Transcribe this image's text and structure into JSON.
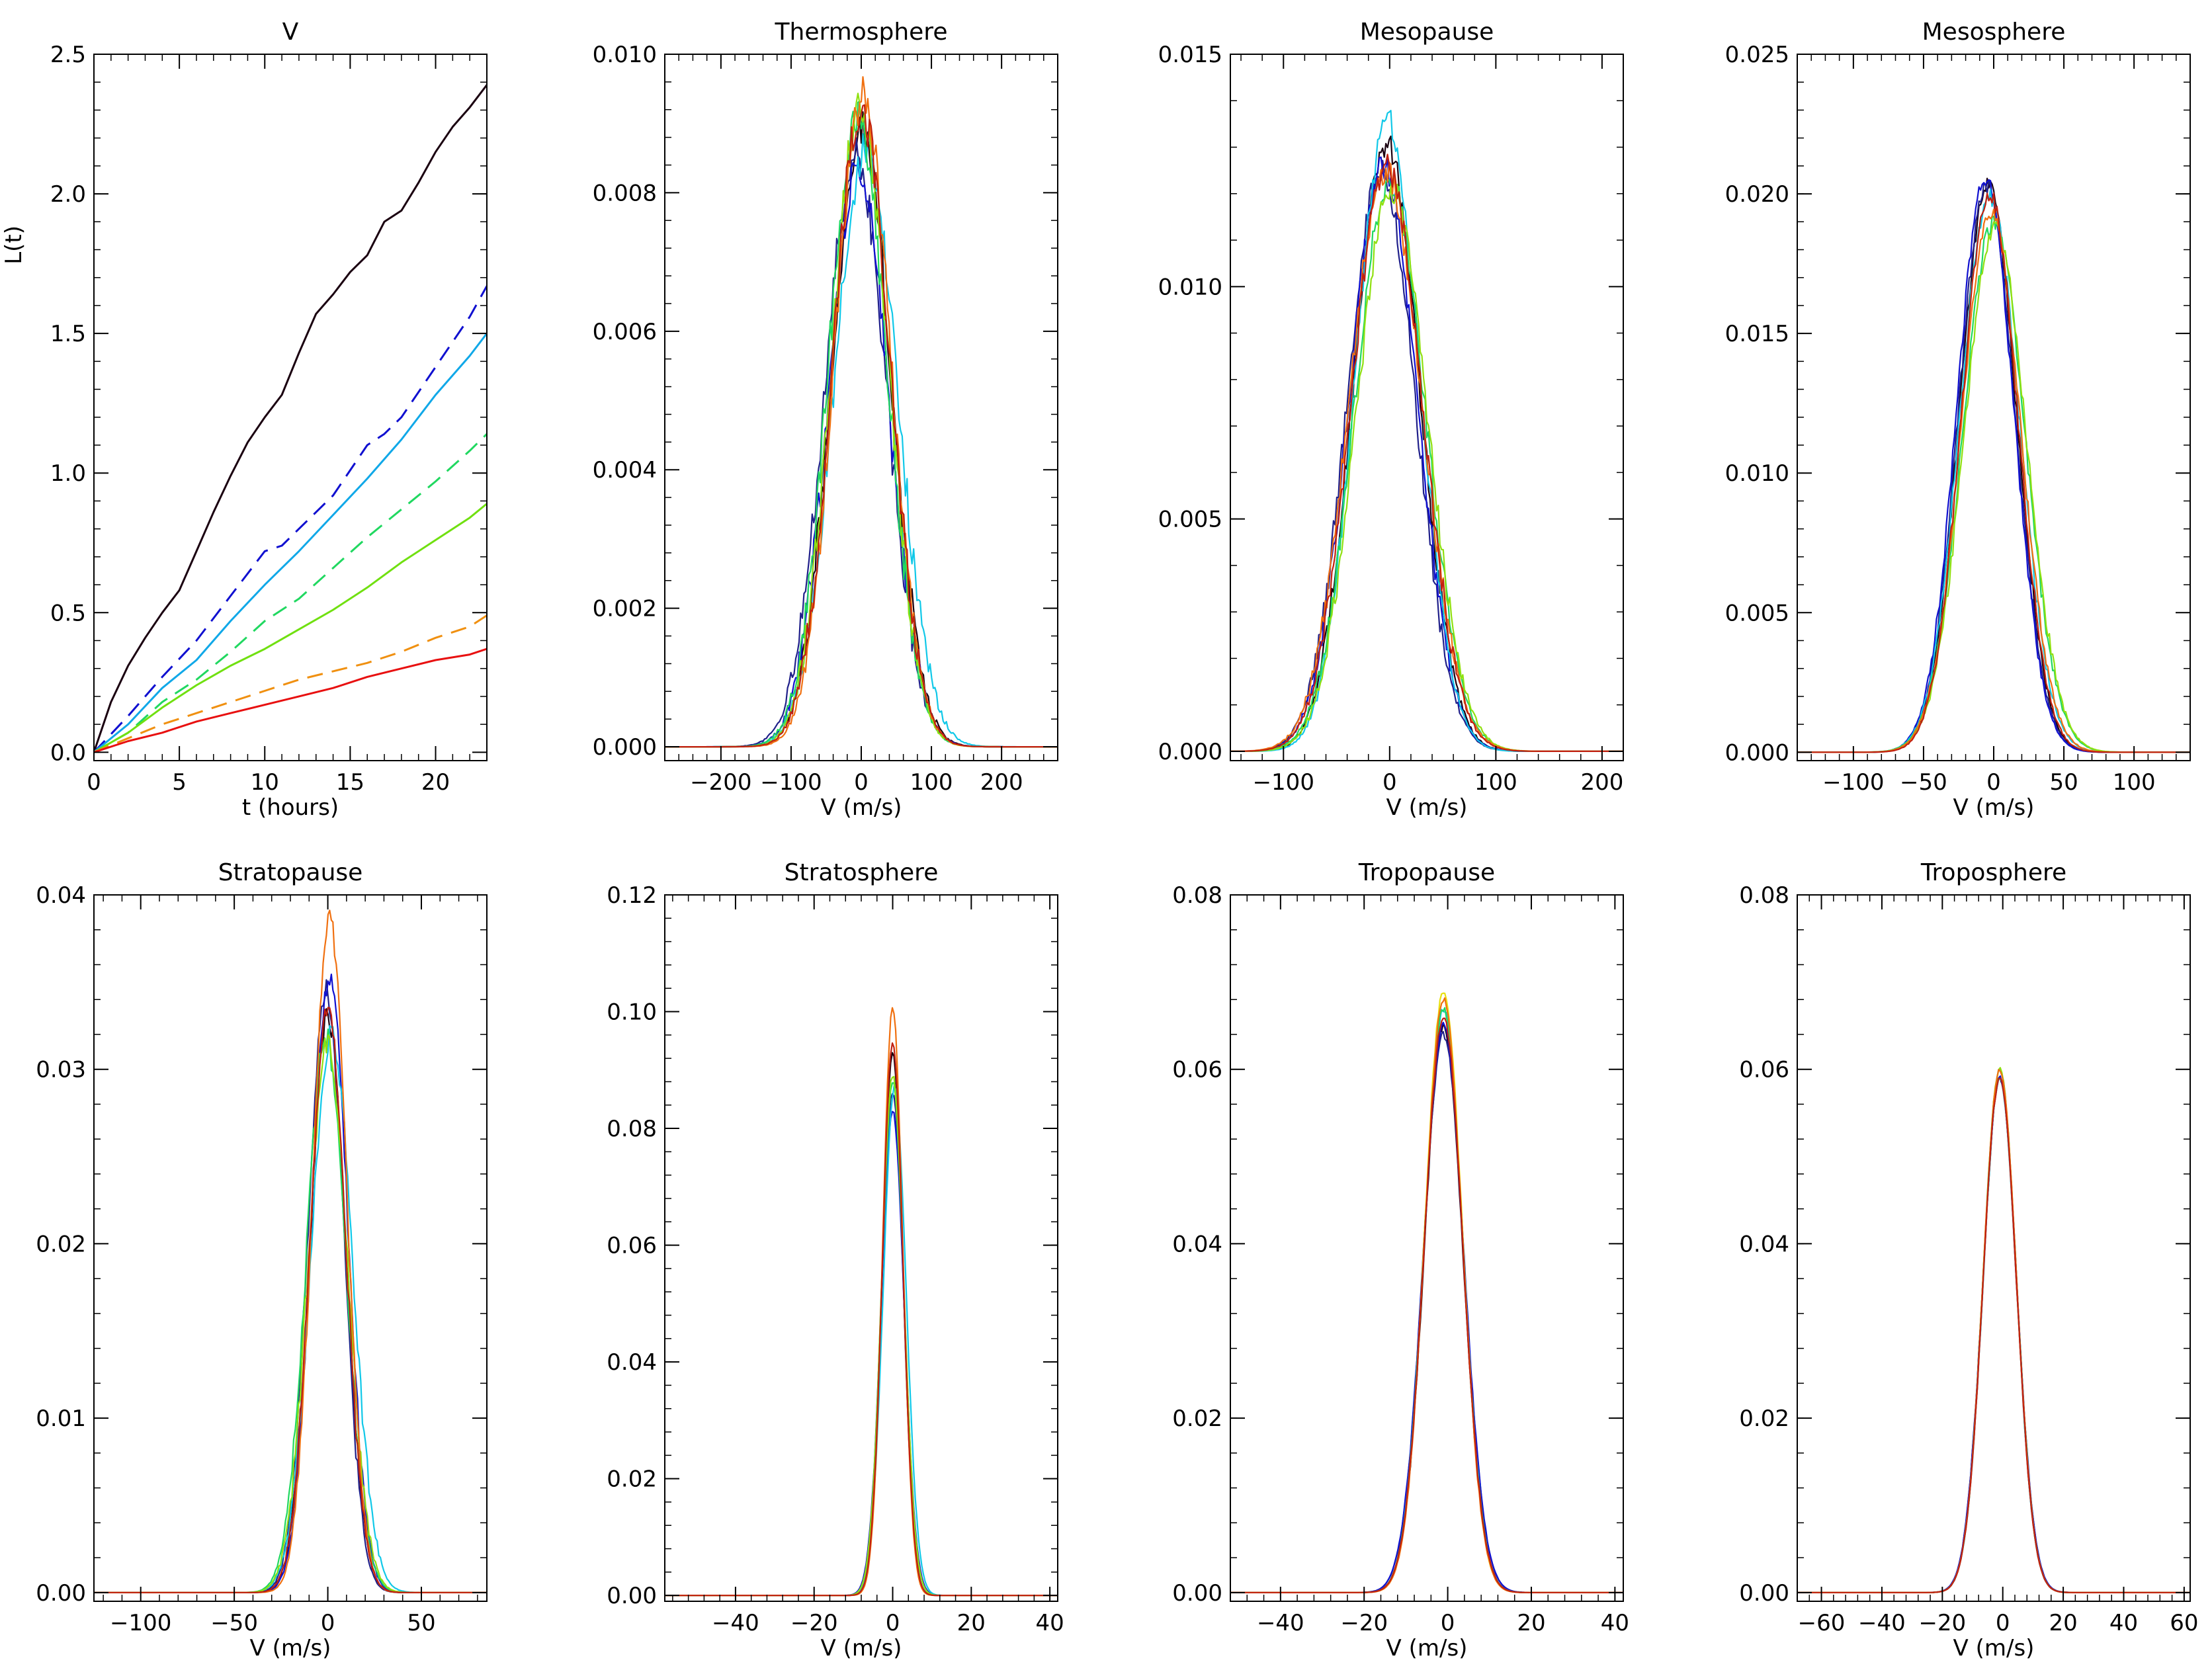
{
  "figure": {
    "description_labels_only": true
  },
  "chart_data": [
    {
      "type": "line",
      "title": "V",
      "xlabel": "t (hours)",
      "ylabel": "L(t)",
      "xlim": [
        0,
        23
      ],
      "ylim": [
        -0.03,
        2.5
      ],
      "xticks": [
        0,
        5,
        10,
        15,
        20
      ],
      "yticks": [
        0.0,
        0.5,
        1.0,
        1.5,
        2.0,
        2.5
      ],
      "ytick_labels": [
        "0.0",
        "0.5",
        "1.0",
        "1.5",
        "2.0",
        "2.5"
      ],
      "series": [
        {
          "name": "black",
          "color": "#1a0010",
          "dash": "solid",
          "x": [
            0,
            1,
            2,
            3,
            4,
            5,
            6,
            7,
            8,
            9,
            10,
            11,
            12,
            13,
            14,
            15,
            16,
            17,
            18,
            19,
            20,
            21,
            22,
            23
          ],
          "y": [
            0,
            0.18,
            0.31,
            0.41,
            0.5,
            0.58,
            0.72,
            0.86,
            0.99,
            1.11,
            1.2,
            1.28,
            1.43,
            1.57,
            1.64,
            1.72,
            1.78,
            1.9,
            1.94,
            2.04,
            2.15,
            2.24,
            2.31,
            2.39
          ]
        },
        {
          "name": "blue-dashed",
          "color": "#1010d0",
          "dash": "dashed",
          "x": [
            0,
            2,
            4,
            6,
            8,
            10,
            11,
            12,
            14,
            16,
            17,
            18,
            20,
            22,
            23
          ],
          "y": [
            0,
            0.13,
            0.27,
            0.4,
            0.56,
            0.72,
            0.74,
            0.8,
            0.92,
            1.1,
            1.14,
            1.2,
            1.38,
            1.56,
            1.67
          ]
        },
        {
          "name": "cyan",
          "color": "#10a8e8",
          "dash": "solid",
          "x": [
            0,
            2,
            4,
            6,
            8,
            10,
            12,
            14,
            16,
            18,
            20,
            22,
            23
          ],
          "y": [
            0,
            0.1,
            0.23,
            0.33,
            0.47,
            0.6,
            0.72,
            0.85,
            0.98,
            1.12,
            1.28,
            1.42,
            1.5
          ]
        },
        {
          "name": "green-dashed",
          "color": "#20d860",
          "dash": "dashed",
          "x": [
            0,
            2,
            4,
            6,
            8,
            10,
            12,
            14,
            16,
            18,
            20,
            22,
            23
          ],
          "y": [
            0,
            0.07,
            0.18,
            0.26,
            0.36,
            0.47,
            0.55,
            0.66,
            0.77,
            0.87,
            0.97,
            1.08,
            1.14
          ]
        },
        {
          "name": "yellow-green",
          "color": "#70e010",
          "dash": "solid",
          "x": [
            0,
            2,
            4,
            6,
            8,
            10,
            12,
            14,
            16,
            18,
            20,
            22,
            23
          ],
          "y": [
            0,
            0.07,
            0.16,
            0.24,
            0.31,
            0.37,
            0.44,
            0.51,
            0.59,
            0.68,
            0.76,
            0.84,
            0.89
          ]
        },
        {
          "name": "orange-dashed",
          "color": "#f09010",
          "dash": "dashed",
          "x": [
            0,
            2,
            4,
            6,
            8,
            10,
            12,
            14,
            16,
            18,
            20,
            22,
            23
          ],
          "y": [
            0,
            0.05,
            0.1,
            0.14,
            0.18,
            0.22,
            0.26,
            0.29,
            0.32,
            0.36,
            0.41,
            0.45,
            0.49
          ]
        },
        {
          "name": "red",
          "color": "#e81010",
          "dash": "solid",
          "x": [
            0,
            2,
            4,
            6,
            8,
            10,
            12,
            14,
            16,
            18,
            20,
            22,
            23
          ],
          "y": [
            0,
            0.04,
            0.07,
            0.11,
            0.14,
            0.17,
            0.2,
            0.23,
            0.27,
            0.3,
            0.33,
            0.35,
            0.37
          ]
        }
      ]
    },
    {
      "type": "line",
      "title": "Thermosphere",
      "xlabel": "V (m/s)",
      "ylabel": "",
      "xlim": [
        -280,
        280
      ],
      "ylim": [
        -0.0002,
        0.01
      ],
      "xticks": [
        -200,
        -100,
        0,
        100,
        200
      ],
      "yticks": [
        0.0,
        0.002,
        0.004,
        0.006,
        0.008,
        0.01
      ],
      "ytick_labels": [
        "0.000",
        "0.002",
        "0.004",
        "0.006",
        "0.008",
        "0.010"
      ],
      "series": [
        {
          "name": "black",
          "color": "#1a0010",
          "mu": 0,
          "sigma": 42,
          "peak": 0.0089,
          "noise": 0.0003
        },
        {
          "name": "navy",
          "color": "#20208a",
          "mu": -8,
          "sigma": 44,
          "peak": 0.0085,
          "noise": 0.0003
        },
        {
          "name": "blue",
          "color": "#1010d0",
          "mu": -4,
          "sigma": 43,
          "peak": 0.0083,
          "noise": 0.0003
        },
        {
          "name": "cyan",
          "color": "#10c8e8",
          "mu": 6,
          "sigma": 45,
          "peak": 0.0086,
          "noise": 0.0003
        },
        {
          "name": "green",
          "color": "#20d860",
          "mu": -5,
          "sigma": 42,
          "peak": 0.0091,
          "noise": 0.0003
        },
        {
          "name": "yellow-green",
          "color": "#90e010",
          "mu": -2,
          "sigma": 41,
          "peak": 0.0092,
          "noise": 0.0003
        },
        {
          "name": "orange",
          "color": "#f07010",
          "mu": 2,
          "sigma": 40,
          "peak": 0.0094,
          "noise": 0.0003
        },
        {
          "name": "red",
          "color": "#c02010",
          "mu": 0,
          "sigma": 41,
          "peak": 0.0092,
          "noise": 0.0003
        }
      ]
    },
    {
      "type": "line",
      "title": "Mesopause",
      "xlabel": "V (m/s)",
      "ylabel": "",
      "xlim": [
        -150,
        220
      ],
      "ylim": [
        -0.0002,
        0.015
      ],
      "xticks": [
        -100,
        0,
        100,
        200
      ],
      "yticks": [
        0.0,
        0.005,
        0.01,
        0.015
      ],
      "ytick_labels": [
        "0.000",
        "0.005",
        "0.010",
        "0.015"
      ],
      "series": [
        {
          "name": "black",
          "color": "#1a0010",
          "mu": -3,
          "sigma": 31,
          "peak": 0.0131,
          "noise": 0.0003
        },
        {
          "name": "navy",
          "color": "#20208a",
          "mu": -8,
          "sigma": 32,
          "peak": 0.0125,
          "noise": 0.0003
        },
        {
          "name": "blue",
          "color": "#1010d0",
          "mu": -6,
          "sigma": 32,
          "peak": 0.0126,
          "noise": 0.0003
        },
        {
          "name": "cyan",
          "color": "#10c8e8",
          "mu": -2,
          "sigma": 30,
          "peak": 0.0136,
          "noise": 0.0003
        },
        {
          "name": "green",
          "color": "#20d860",
          "mu": 0,
          "sigma": 33,
          "peak": 0.0123,
          "noise": 0.0003
        },
        {
          "name": "yellow-green",
          "color": "#90e010",
          "mu": 2,
          "sigma": 33,
          "peak": 0.0121,
          "noise": 0.0003
        },
        {
          "name": "orange",
          "color": "#f07010",
          "mu": -4,
          "sigma": 34,
          "peak": 0.0125,
          "noise": 0.0003
        },
        {
          "name": "red",
          "color": "#c02010",
          "mu": -3,
          "sigma": 33,
          "peak": 0.0126,
          "noise": 0.0003
        }
      ]
    },
    {
      "type": "line",
      "title": "Mesosphere",
      "xlabel": "V (m/s)",
      "ylabel": "",
      "xlim": [
        -140,
        140
      ],
      "ylim": [
        -0.0003,
        0.025
      ],
      "xticks": [
        -100,
        -50,
        0,
        50,
        100
      ],
      "yticks": [
        0.0,
        0.005,
        0.01,
        0.015,
        0.02,
        0.025
      ],
      "ytick_labels": [
        "0.000",
        "0.005",
        "0.010",
        "0.015",
        "0.020",
        "0.025"
      ],
      "series": [
        {
          "name": "black",
          "color": "#1a0010",
          "mu": -4,
          "sigma": 20,
          "peak": 0.0204,
          "noise": 0.0003
        },
        {
          "name": "navy",
          "color": "#20208a",
          "mu": -5,
          "sigma": 20,
          "peak": 0.0203,
          "noise": 0.0003
        },
        {
          "name": "blue",
          "color": "#1010d0",
          "mu": -6,
          "sigma": 20,
          "peak": 0.0206,
          "noise": 0.0003
        },
        {
          "name": "cyan",
          "color": "#10c8e8",
          "mu": -3,
          "sigma": 21,
          "peak": 0.0199,
          "noise": 0.0003
        },
        {
          "name": "green",
          "color": "#20d860",
          "mu": 0,
          "sigma": 22,
          "peak": 0.019,
          "noise": 0.0003
        },
        {
          "name": "yellow-green",
          "color": "#90e010",
          "mu": 1,
          "sigma": 22,
          "peak": 0.0188,
          "noise": 0.0003
        },
        {
          "name": "orange",
          "color": "#f07010",
          "mu": -2,
          "sigma": 21,
          "peak": 0.0193,
          "noise": 0.0003
        },
        {
          "name": "red",
          "color": "#c02010",
          "mu": -3,
          "sigma": 20,
          "peak": 0.02,
          "noise": 0.0003
        }
      ]
    },
    {
      "type": "line",
      "title": "Stratopause",
      "xlabel": "V (m/s)",
      "ylabel": "",
      "xlim": [
        -125,
        85
      ],
      "ylim": [
        -0.0005,
        0.04
      ],
      "xticks": [
        -100,
        -50,
        0,
        50
      ],
      "yticks": [
        0.0,
        0.01,
        0.02,
        0.03,
        0.04
      ],
      "ytick_labels": [
        "0.00",
        "0.01",
        "0.02",
        "0.03",
        "0.04"
      ],
      "series": [
        {
          "name": "black",
          "color": "#1a0010",
          "mu": 0,
          "sigma": 9.5,
          "peak": 0.033,
          "noise": 0.0007
        },
        {
          "name": "navy",
          "color": "#20208a",
          "mu": -1,
          "sigma": 9.5,
          "peak": 0.0345,
          "noise": 0.0007
        },
        {
          "name": "blue",
          "color": "#1010d0",
          "mu": 1,
          "sigma": 9.5,
          "peak": 0.0355,
          "noise": 0.0007
        },
        {
          "name": "cyan",
          "color": "#10c8e8",
          "mu": 2,
          "sigma": 11,
          "peak": 0.032,
          "noise": 0.0007
        },
        {
          "name": "green",
          "color": "#20d860",
          "mu": -1,
          "sigma": 10.5,
          "peak": 0.0318,
          "noise": 0.0007
        },
        {
          "name": "yellow-green",
          "color": "#90e010",
          "mu": 0,
          "sigma": 10.5,
          "peak": 0.0315,
          "noise": 0.0007
        },
        {
          "name": "orange",
          "color": "#f07010",
          "mu": 1,
          "sigma": 9,
          "peak": 0.0388,
          "noise": 0.0007
        },
        {
          "name": "red",
          "color": "#c02010",
          "mu": 0,
          "sigma": 9.5,
          "peak": 0.0335,
          "noise": 0.0007
        }
      ]
    },
    {
      "type": "line",
      "title": "Stratosphere",
      "xlabel": "V (m/s)",
      "ylabel": "",
      "xlim": [
        -58,
        42
      ],
      "ylim": [
        -0.001,
        0.12
      ],
      "xticks": [
        -40,
        -20,
        0,
        20,
        40
      ],
      "yticks": [
        0.0,
        0.02,
        0.04,
        0.06,
        0.08,
        0.1,
        0.12
      ],
      "ytick_labels": [
        "0.00",
        "0.02",
        "0.04",
        "0.06",
        "0.08",
        "0.10",
        "0.12"
      ],
      "series": [
        {
          "name": "black",
          "color": "#1a0010",
          "mu": 0,
          "sigma": 2.6,
          "peak": 0.093,
          "noise": 0.0005
        },
        {
          "name": "navy",
          "color": "#20208a",
          "mu": 0,
          "sigma": 2.8,
          "peak": 0.086,
          "noise": 0.0005
        },
        {
          "name": "blue",
          "color": "#1010d0",
          "mu": 0,
          "sigma": 2.9,
          "peak": 0.083,
          "noise": 0.0005
        },
        {
          "name": "cyan",
          "color": "#10c8e8",
          "mu": 0.5,
          "sigma": 2.9,
          "peak": 0.087,
          "noise": 0.0005
        },
        {
          "name": "green",
          "color": "#20d860",
          "mu": 0,
          "sigma": 2.8,
          "peak": 0.088,
          "noise": 0.0005
        },
        {
          "name": "yellow-green",
          "color": "#90e010",
          "mu": 0,
          "sigma": 2.8,
          "peak": 0.089,
          "noise": 0.0005
        },
        {
          "name": "orange",
          "color": "#f07010",
          "mu": 0,
          "sigma": 2.5,
          "peak": 0.101,
          "noise": 0.0005
        },
        {
          "name": "red",
          "color": "#c02010",
          "mu": 0,
          "sigma": 2.6,
          "peak": 0.095,
          "noise": 0.0005
        }
      ]
    },
    {
      "type": "line",
      "title": "Tropopause",
      "xlabel": "V (m/s)",
      "ylabel": "",
      "xlim": [
        -52,
        42
      ],
      "ylim": [
        -0.001,
        0.08
      ],
      "xticks": [
        -40,
        -20,
        0,
        20,
        40
      ],
      "yticks": [
        0.0,
        0.02,
        0.04,
        0.06,
        0.08
      ],
      "ytick_labels": [
        "0.00",
        "0.02",
        "0.04",
        "0.06",
        "0.08"
      ],
      "series": [
        {
          "name": "black",
          "color": "#1a0010",
          "mu": -1,
          "sigma": 4.6,
          "peak": 0.065,
          "noise": 0.0004
        },
        {
          "name": "navy",
          "color": "#20208a",
          "mu": -1,
          "sigma": 4.8,
          "peak": 0.064,
          "noise": 0.0004
        },
        {
          "name": "blue",
          "color": "#1010d0",
          "mu": -1,
          "sigma": 4.8,
          "peak": 0.065,
          "noise": 0.0004
        },
        {
          "name": "cyan",
          "color": "#10c8e8",
          "mu": -1,
          "sigma": 4.6,
          "peak": 0.067,
          "noise": 0.0004
        },
        {
          "name": "green",
          "color": "#20d860",
          "mu": -1,
          "sigma": 4.6,
          "peak": 0.067,
          "noise": 0.0004
        },
        {
          "name": "yellow-green",
          "color": "#e8e010",
          "mu": -1,
          "sigma": 4.5,
          "peak": 0.069,
          "noise": 0.0004
        },
        {
          "name": "orange",
          "color": "#f07010",
          "mu": -1,
          "sigma": 4.5,
          "peak": 0.068,
          "noise": 0.0004
        },
        {
          "name": "red",
          "color": "#c02010",
          "mu": -1,
          "sigma": 4.6,
          "peak": 0.066,
          "noise": 0.0004
        }
      ]
    },
    {
      "type": "line",
      "title": "Troposphere",
      "xlabel": "V (m/s)",
      "ylabel": "",
      "xlim": [
        -68,
        62
      ],
      "ylim": [
        -0.001,
        0.08
      ],
      "xticks": [
        -60,
        -40,
        -20,
        0,
        20,
        40,
        60
      ],
      "yticks": [
        0.0,
        0.02,
        0.04,
        0.06,
        0.08
      ],
      "ytick_labels": [
        "0.00",
        "0.02",
        "0.04",
        "0.06",
        "0.08"
      ],
      "series": [
        {
          "name": "black",
          "color": "#1a0010",
          "mu": -1,
          "sigma": 5.5,
          "peak": 0.059,
          "noise": 0.0003
        },
        {
          "name": "navy",
          "color": "#20208a",
          "mu": -1,
          "sigma": 5.6,
          "peak": 0.059,
          "noise": 0.0003
        },
        {
          "name": "blue",
          "color": "#1010d0",
          "mu": -1,
          "sigma": 5.6,
          "peak": 0.059,
          "noise": 0.0003
        },
        {
          "name": "cyan",
          "color": "#10c8e8",
          "mu": -1,
          "sigma": 5.5,
          "peak": 0.059,
          "noise": 0.0003
        },
        {
          "name": "green",
          "color": "#20d860",
          "mu": -1,
          "sigma": 5.5,
          "peak": 0.06,
          "noise": 0.0003
        },
        {
          "name": "yellow-green",
          "color": "#90e010",
          "mu": -1,
          "sigma": 5.5,
          "peak": 0.06,
          "noise": 0.0003
        },
        {
          "name": "orange",
          "color": "#f07010",
          "mu": -1,
          "sigma": 5.5,
          "peak": 0.06,
          "noise": 0.0003
        },
        {
          "name": "red",
          "color": "#c02010",
          "mu": -1,
          "sigma": 5.5,
          "peak": 0.059,
          "noise": 0.0003
        }
      ]
    }
  ]
}
